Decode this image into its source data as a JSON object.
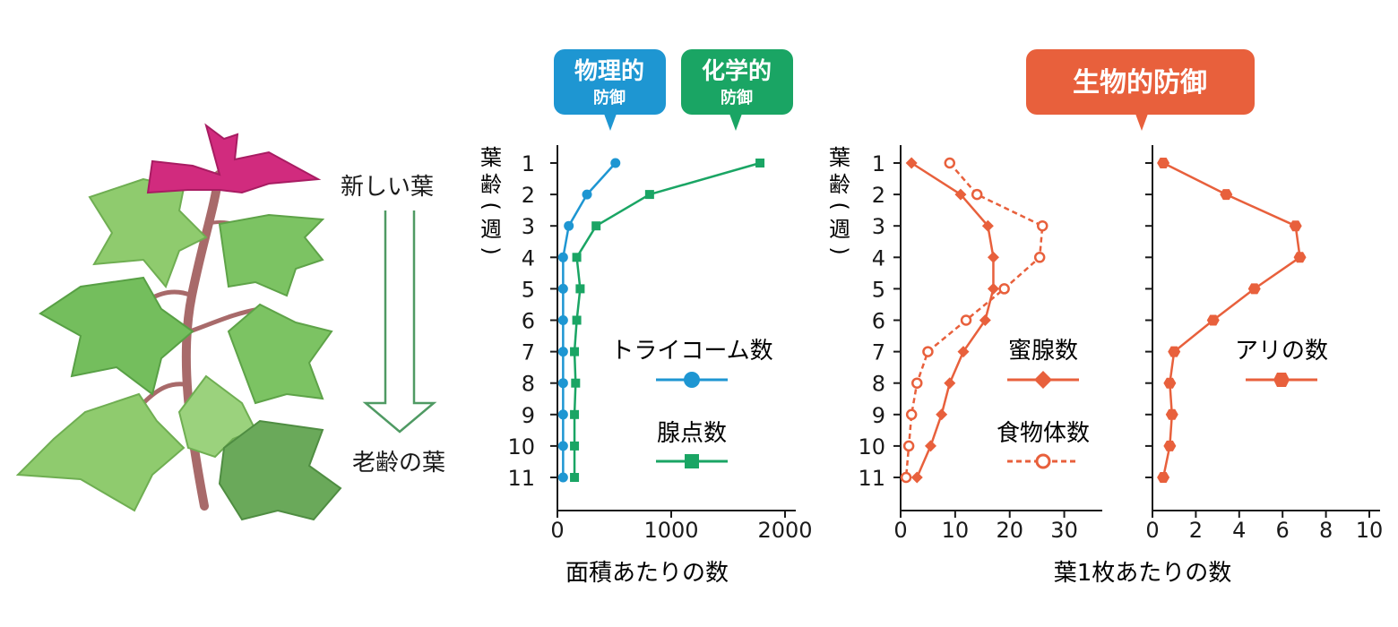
{
  "plant": {
    "new_leaf_label": "新しい葉",
    "old_leaf_label": "老齢の葉"
  },
  "badges": {
    "physical": {
      "main": "物理的",
      "sub": "防御",
      "color": "#1e96d2"
    },
    "chemical": {
      "main": "化学的",
      "sub": "防御",
      "color": "#1aa564"
    },
    "biological": {
      "main": "生物的防御",
      "color": "#e8603c"
    }
  },
  "ylabel": {
    "chars": [
      "葉",
      "齢",
      "(",
      "週",
      ")"
    ]
  },
  "chart_data": [
    {
      "type": "line",
      "categories": [
        1,
        2,
        3,
        4,
        5,
        6,
        7,
        8,
        9,
        10,
        11
      ],
      "xlim": [
        0,
        2000
      ],
      "xticks": [
        0,
        1000,
        2000
      ],
      "xlabel": "面積あたりの数",
      "ylabel": "葉齢(週)",
      "series": [
        {
          "name": "トライコーム数",
          "color": "#1e96d2",
          "marker": "circle",
          "dashed": false,
          "values": [
            510,
            260,
            100,
            50,
            50,
            50,
            50,
            50,
            50,
            50,
            50
          ]
        },
        {
          "name": "腺点数",
          "color": "#1aa564",
          "marker": "square",
          "dashed": false,
          "values": [
            1780,
            810,
            340,
            170,
            200,
            170,
            150,
            160,
            150,
            150,
            150
          ]
        }
      ]
    },
    {
      "type": "line",
      "categories": [
        1,
        2,
        3,
        4,
        5,
        6,
        7,
        8,
        9,
        10,
        11
      ],
      "xlim": [
        0,
        35
      ],
      "xticks": [
        0,
        10,
        20,
        30
      ],
      "xlabel": "葉1枚あたりの数",
      "ylabel": "葉齢(週)",
      "series": [
        {
          "name": "蜜腺数",
          "color": "#e8603c",
          "marker": "diamond",
          "dashed": false,
          "values": [
            2,
            11,
            16,
            17,
            17,
            15.5,
            11.5,
            9,
            7.5,
            5.5,
            3
          ]
        },
        {
          "name": "食物体数",
          "color": "#e8603c",
          "marker": "open-circle",
          "dashed": true,
          "values": [
            9,
            14,
            26,
            25.5,
            19,
            12,
            5,
            3,
            2,
            1.5,
            1
          ]
        }
      ]
    },
    {
      "type": "line",
      "categories": [
        1,
        2,
        3,
        4,
        5,
        6,
        7,
        8,
        9,
        10,
        11
      ],
      "xlim": [
        0,
        10
      ],
      "xticks": [
        0,
        2,
        4,
        6,
        8,
        10
      ],
      "xlabel": "葉1枚あたりの数",
      "series": [
        {
          "name": "アリの数",
          "color": "#e8603c",
          "marker": "hexagon",
          "dashed": false,
          "values": [
            0.5,
            3.4,
            6.6,
            6.8,
            4.7,
            2.8,
            1.0,
            0.8,
            0.9,
            0.8,
            0.5
          ]
        }
      ]
    }
  ]
}
